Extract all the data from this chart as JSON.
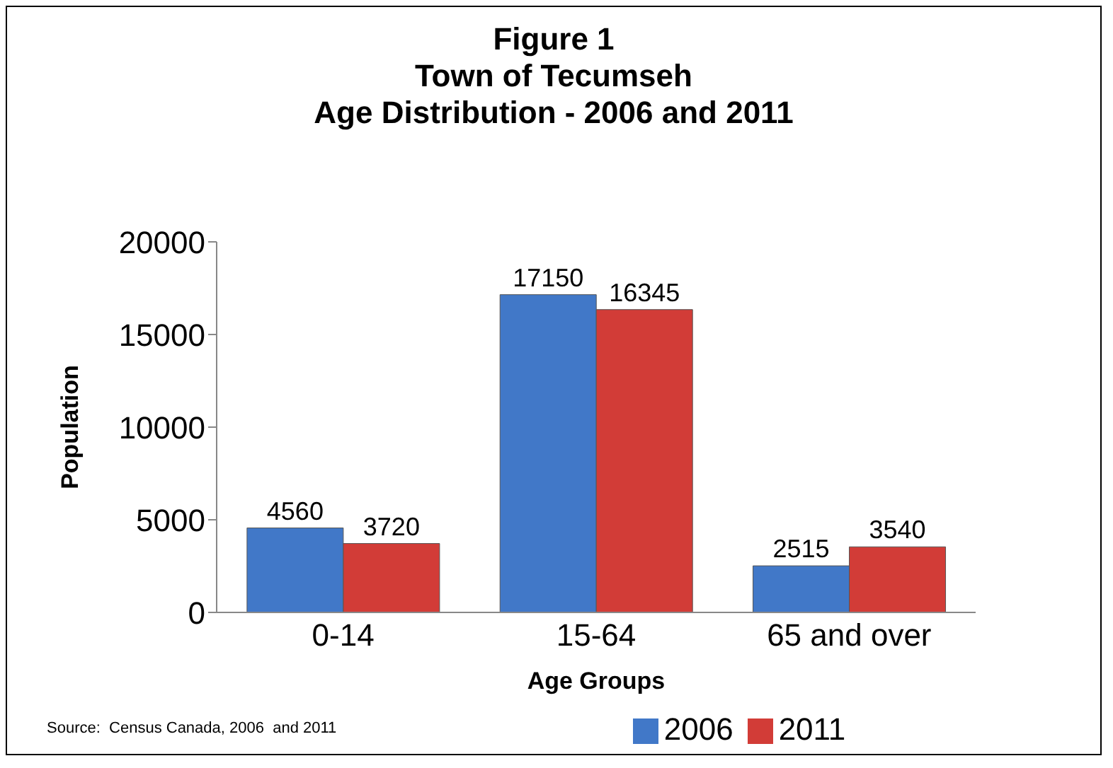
{
  "chart_data": {
    "type": "bar",
    "title": "Figure 1\nTown of Tecumseh\nAge Distribution - 2006 and 2011",
    "xlabel": "Age Groups",
    "ylabel": "Population",
    "categories": [
      "0-14",
      "15-64",
      "65 and over"
    ],
    "series": [
      {
        "name": "2006",
        "color": "#4178c8",
        "values": [
          4560,
          17150,
          2515
        ]
      },
      {
        "name": "2011",
        "color": "#d23c37",
        "values": [
          3720,
          16345,
          3540
        ]
      }
    ],
    "ylim": [
      0,
      20000
    ],
    "yticks": [
      0,
      5000,
      10000,
      15000,
      20000
    ],
    "data_labels": true,
    "legend": "bottom",
    "annotations": [
      "Source:  Census Canada, 2006  and 2011"
    ]
  }
}
